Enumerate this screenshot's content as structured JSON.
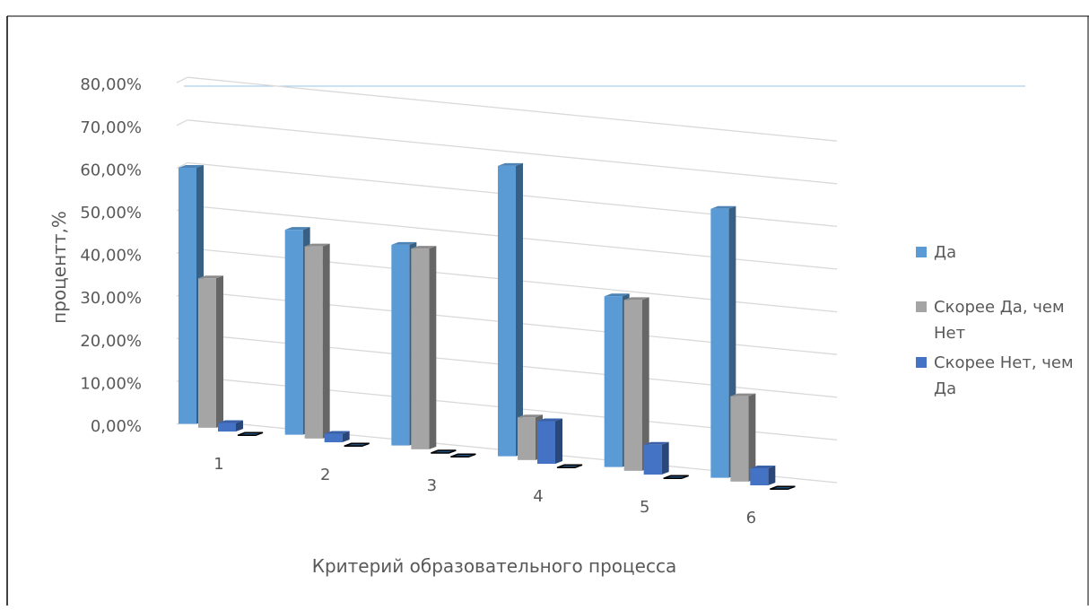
{
  "chart_data": {
    "type": "bar",
    "title": "",
    "xlabel": "Критерий образовательного процесса",
    "ylabel": "процентт,%",
    "categories": [
      "1",
      "2",
      "3",
      "4",
      "5",
      "6"
    ],
    "ylim": [
      0,
      0.8
    ],
    "y_ticks": [
      "0,00%",
      "10,00%",
      "20,00%",
      "30,00%",
      "40,00%",
      "50,00%",
      "60,00%",
      "70,00%",
      "80,00%"
    ],
    "series": [
      {
        "name": "Да",
        "color": "#5B9BD5",
        "values": [
          0.6,
          0.48,
          0.47,
          0.68,
          0.4,
          0.63
        ]
      },
      {
        "name": "Скорее Да, чем Нет",
        "color": "#A5A5A5",
        "values": [
          0.35,
          0.45,
          0.47,
          0.1,
          0.4,
          0.2
        ]
      },
      {
        "name": "Скорее Нет, чем Да",
        "color": "#4472C4",
        "values": [
          0.02,
          0.02,
          0.0,
          0.1,
          0.07,
          0.04
        ]
      },
      {
        "name": "",
        "color": "#1F4E79",
        "values": [
          0,
          0,
          0,
          0,
          0,
          0
        ]
      }
    ],
    "legend": {
      "position": "right",
      "items": [
        {
          "lines": [
            "Да"
          ],
          "color": "#5B9BD5"
        },
        {
          "lines": [
            "Скорее Да, чем",
            "Нет"
          ],
          "color": "#A5A5A5"
        },
        {
          "lines": [
            "Скорее Нет, чем",
            "Да"
          ],
          "color": "#4472C4"
        }
      ]
    },
    "grid": true
  }
}
